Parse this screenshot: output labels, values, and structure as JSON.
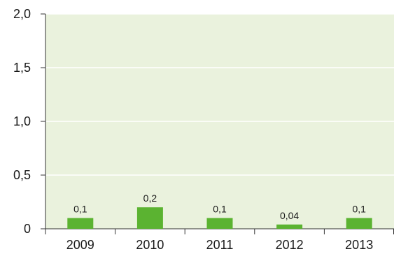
{
  "chart_data": {
    "type": "bar",
    "categories": [
      "2009",
      "2010",
      "2011",
      "2012",
      "2013"
    ],
    "values": [
      0.1,
      0.2,
      0.1,
      0.04,
      0.1
    ],
    "value_labels": [
      "0,1",
      "0,2",
      "0,1",
      "0,04",
      "0,1"
    ],
    "y_ticks": [
      {
        "value": 0,
        "label": "0"
      },
      {
        "value": 0.5,
        "label": "0,5"
      },
      {
        "value": 1.0,
        "label": "1,0"
      },
      {
        "value": 1.5,
        "label": "1,5"
      },
      {
        "value": 2.0,
        "label": "2,0"
      }
    ],
    "ylim": [
      0,
      2
    ],
    "grid": true,
    "colors": {
      "plot_background": "#eaf2dd",
      "bar": "#5bb331",
      "gridline": "#ffffff",
      "axis": "#333333"
    }
  }
}
